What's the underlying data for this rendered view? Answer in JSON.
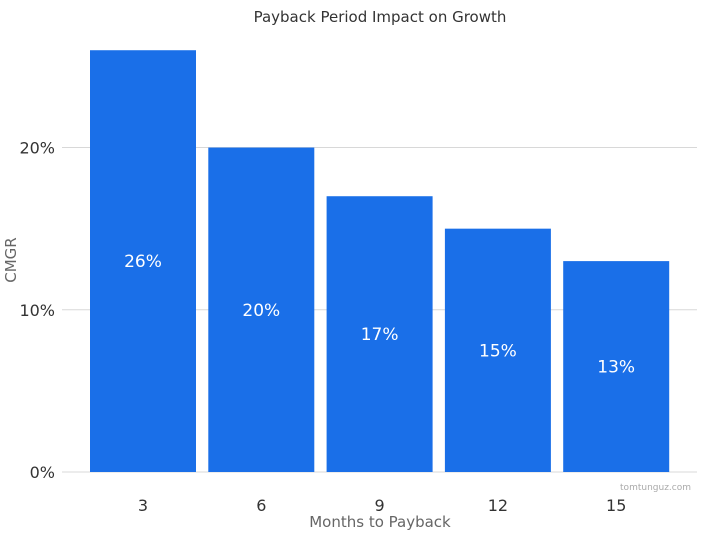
{
  "chart_data": {
    "type": "bar",
    "title": "Payback Period Impact on Growth",
    "xlabel": "Months to Payback",
    "ylabel": "CMGR",
    "categories": [
      "3",
      "6",
      "9",
      "12",
      "15"
    ],
    "values": [
      26,
      20,
      17,
      15,
      13
    ],
    "data_labels": [
      "26%",
      "20%",
      "17%",
      "15%",
      "13%"
    ],
    "ylim": [
      0,
      27
    ],
    "yticks": [
      0,
      10,
      20
    ],
    "ytick_labels": [
      "0%",
      "10%",
      "20%"
    ],
    "grid": true,
    "legend": "none",
    "bar_color": "#1a6fe8",
    "credit": "tomtunguz.com"
  }
}
